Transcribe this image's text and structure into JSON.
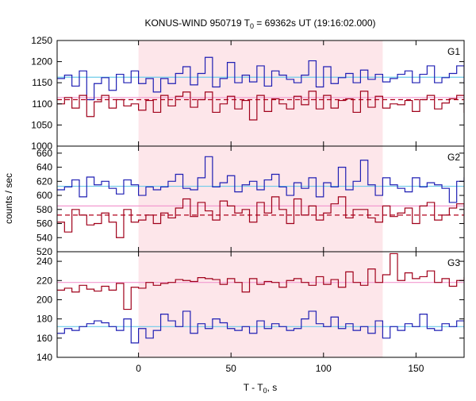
{
  "chart_data": {
    "type": "line",
    "title_main": "KONUS-WIND 950719 T",
    "title_sub": "0",
    "title_rest": " = 69362s UT (19:16:02.000)",
    "ylabel": "counts / sec",
    "xlabel_main": "T - T",
    "xlabel_sub": "0",
    "xlabel_rest": ", s",
    "xlim": [
      -44,
      176
    ],
    "xticks": [
      0,
      50,
      100,
      150
    ],
    "highlight_interval": [
      0,
      132
    ],
    "bin_width": 4,
    "x_start": -44,
    "colors": {
      "blue": "#1f1fb4",
      "red": "#a0001a",
      "cyan": "#6ecbea",
      "pink": "#f29ad0",
      "dashed": "#b0001a",
      "shade": "#fde6ea"
    },
    "panels": [
      {
        "label": "G1",
        "ylim": [
          1000,
          1250
        ],
        "yticks": [
          1000,
          1050,
          1100,
          1150,
          1200,
          1250
        ],
        "series": [
          {
            "color": "blue",
            "values": [
              1160,
              1168,
              1142,
              1178,
              1110,
              1148,
              1162,
              1132,
              1170,
              1150,
              1178,
              1148,
              1160,
              1128,
              1160,
              1148,
              1172,
              1188,
              1145,
              1172,
              1210,
              1140,
              1160,
              1198,
              1150,
              1168,
              1152,
              1190,
              1142,
              1178,
              1168,
              1158,
              1150,
              1168,
              1202,
              1140,
              1188,
              1148,
              1162,
              1172,
              1150,
              1180,
              1158,
              1170,
              1152,
              1160,
              1170,
              1178,
              1150,
              1170,
              1190,
              1150,
              1162,
              1172,
              1190,
              1148,
              1138,
              1158
            ]
          },
          {
            "color": "red",
            "values": [
              1100,
              1115,
              1090,
              1120,
              1070,
              1105,
              1120,
              1090,
              1110,
              1095,
              1100,
              1085,
              1108,
              1080,
              1120,
              1095,
              1118,
              1128,
              1092,
              1110,
              1128,
              1080,
              1100,
              1118,
              1088,
              1108,
              1062,
              1120,
              1082,
              1112,
              1100,
              1088,
              1118,
              1098,
              1130,
              1088,
              1120,
              1090,
              1108,
              1112,
              1080,
              1130,
              1092,
              1118,
              1090,
              1100,
              1098,
              1108,
              1082,
              1110,
              1120,
              1088,
              1102,
              1112,
              1120,
              1080,
              1110,
              1118
            ]
          }
        ],
        "ref_lines": [
          {
            "color": "cyan",
            "value": 1163,
            "dashed": false
          },
          {
            "color": "dashed",
            "value": 1110,
            "dashed": true
          },
          {
            "color": "pink",
            "value": 1115,
            "dashed": false
          }
        ]
      },
      {
        "label": "G2",
        "ylim": [
          520,
          670
        ],
        "yticks": [
          520,
          540,
          560,
          580,
          600,
          620,
          640,
          660
        ],
        "series": [
          {
            "color": "blue",
            "values": [
              608,
              612,
              622,
              598,
              626,
              615,
              620,
              610,
              602,
              622,
              615,
              600,
              612,
              608,
              612,
              620,
              630,
              610,
              608,
              625,
              655,
              612,
              618,
              628,
              605,
              615,
              620,
              608,
              622,
              630,
              612,
              600,
              618,
              610,
              625,
              598,
              618,
              612,
              640,
              608,
              620,
              650,
              615,
              600,
              625,
              615,
              610,
              605,
              625,
              612,
              618,
              615,
              610,
              590,
              620,
              625,
              605,
              615
            ]
          },
          {
            "color": "red",
            "values": [
              562,
              548,
              580,
              572,
              558,
              560,
              575,
              562,
              540,
              580,
              562,
              565,
              572,
              560,
              575,
              568,
              582,
              595,
              570,
              590,
              578,
              565,
              592,
              585,
              575,
              580,
              562,
              590,
              575,
              598,
              580,
              560,
              595,
              572,
              585,
              565,
              575,
              588,
              598,
              568,
              580,
              580,
              568,
              562,
              585,
              570,
              575,
              582,
              560,
              585,
              590,
              565,
              572,
              582,
              588,
              560,
              572,
              582
            ]
          }
        ],
        "ref_lines": [
          {
            "color": "cyan",
            "value": 613,
            "dashed": false
          },
          {
            "color": "dashed",
            "value": 572,
            "dashed": true
          },
          {
            "color": "pink",
            "value": 585,
            "dashed": false
          }
        ]
      },
      {
        "label": "G3",
        "ylim": [
          140,
          250
        ],
        "yticks": [
          140,
          160,
          180,
          200,
          220,
          240
        ],
        "series": [
          {
            "color": "red",
            "values": [
              210,
              212,
              208,
              215,
              211,
              209,
              214,
              210,
              217,
              190,
              213,
              212,
              218,
              215,
              217,
              218,
              221,
              220,
              219,
              223,
              222,
              221,
              216,
              222,
              218,
              208,
              222,
              216,
              219,
              218,
              213,
              220,
              222,
              218,
              215,
              224,
              216,
              221,
              213,
              229,
              218,
              215,
              232,
              218,
              226,
              248,
              220,
              228,
              222,
              224,
              230,
              218,
              222,
              214,
              220,
              223,
              218,
              216
            ]
          },
          {
            "color": "blue",
            "values": [
              165,
              170,
              168,
              172,
              175,
              178,
              176,
              172,
              168,
              180,
              155,
              170,
              160,
              168,
              185,
              178,
              172,
              188,
              165,
              175,
              170,
              180,
              176,
              170,
              168,
              172,
              165,
              178,
              170,
              175,
              172,
              168,
              170,
              180,
              188,
              175,
              172,
              182,
              170,
              175,
              168,
              172,
              165,
              178,
              160,
              172,
              168,
              175,
              172,
              185,
              170,
              168,
              175,
              172,
              178,
              170,
              175,
              172
            ]
          }
        ],
        "ref_lines": [
          {
            "color": "cyan",
            "value": 172,
            "dashed": false
          },
          {
            "color": "pink",
            "value": 218,
            "dashed": false
          }
        ]
      }
    ]
  }
}
